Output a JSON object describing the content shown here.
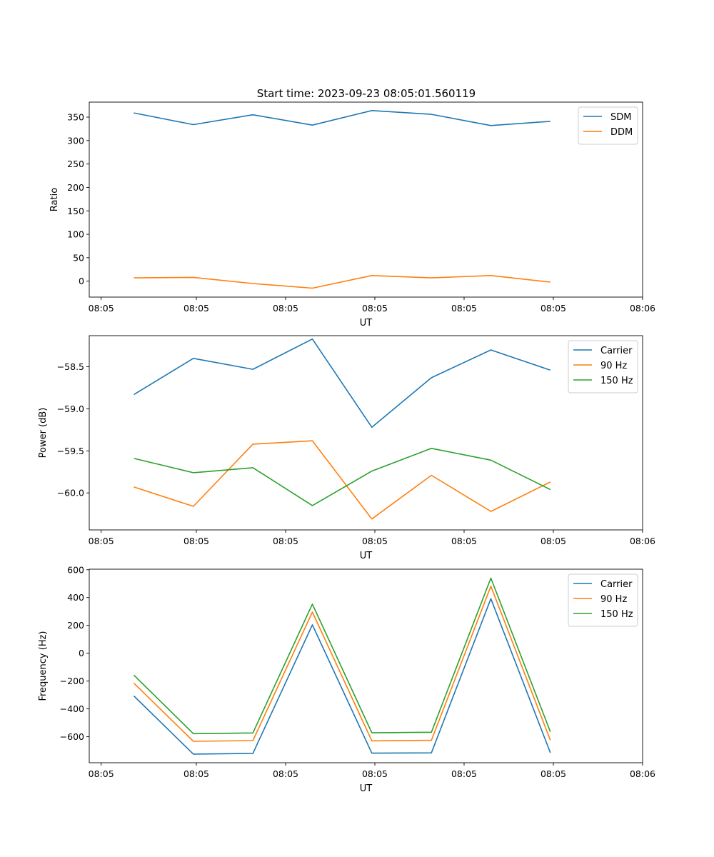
{
  "figure_title": "Start time: 2023-09-23 08:05:01.560119",
  "chart_data": [
    {
      "type": "line",
      "title": "Start time: 2023-09-23 08:05:01.560119",
      "xlabel": "UT",
      "ylabel": "Ratio",
      "xlim": [
        0,
        9.3
      ],
      "ylim": [
        -34,
        382
      ],
      "x": [
        0.75,
        1.75,
        2.75,
        3.75,
        4.75,
        5.75,
        6.75,
        7.75
      ],
      "x_ticks": [
        0.2,
        1.8,
        3.3,
        4.8,
        6.3,
        7.8,
        9.3
      ],
      "x_tick_labels": [
        "08:05",
        "08:05",
        "08:05",
        "08:05",
        "08:05",
        "08:05",
        "08:06"
      ],
      "y_ticks": [
        0,
        50,
        100,
        150,
        200,
        250,
        300,
        350
      ],
      "y_tick_labels": [
        "0",
        "50",
        "100",
        "150",
        "200",
        "250",
        "300",
        "350"
      ],
      "legend_position": "top-right",
      "series": [
        {
          "name": "SDM",
          "color": "#1f77b4",
          "values": [
            359,
            334,
            355,
            333,
            364,
            356,
            332,
            341
          ]
        },
        {
          "name": "DDM",
          "color": "#ff7f0e",
          "values": [
            7,
            8,
            -5,
            -15,
            12,
            7,
            12,
            -2
          ]
        }
      ]
    },
    {
      "type": "line",
      "title": "",
      "xlabel": "UT",
      "ylabel": "Power (dB)",
      "xlim": [
        0,
        9.3
      ],
      "ylim": [
        -60.44,
        -58.13
      ],
      "x": [
        0.75,
        1.75,
        2.75,
        3.75,
        4.75,
        5.75,
        6.75,
        7.75
      ],
      "x_ticks": [
        0.2,
        1.8,
        3.3,
        4.8,
        6.3,
        7.8,
        9.3
      ],
      "x_tick_labels": [
        "08:05",
        "08:05",
        "08:05",
        "08:05",
        "08:05",
        "08:05",
        "08:06"
      ],
      "y_ticks": [
        -60.0,
        -59.5,
        -59.0,
        -58.5
      ],
      "y_tick_labels": [
        "−60.0",
        "−59.5",
        "−59.0",
        "−58.5"
      ],
      "legend_position": "top-right",
      "series": [
        {
          "name": "Carrier",
          "color": "#1f77b4",
          "values": [
            -58.83,
            -58.4,
            -58.53,
            -58.17,
            -59.22,
            -58.63,
            -58.3,
            -58.54
          ]
        },
        {
          "name": "90 Hz",
          "color": "#ff7f0e",
          "values": [
            -59.93,
            -60.16,
            -59.42,
            -59.38,
            -60.31,
            -59.79,
            -60.22,
            -59.87
          ]
        },
        {
          "name": "150 Hz",
          "color": "#2ca02c",
          "values": [
            -59.59,
            -59.76,
            -59.7,
            -60.15,
            -59.74,
            -59.47,
            -59.61,
            -59.96
          ]
        }
      ]
    },
    {
      "type": "line",
      "title": "",
      "xlabel": "UT",
      "ylabel": "Frequency (Hz)",
      "xlim": [
        0,
        9.3
      ],
      "ylim": [
        -787,
        604
      ],
      "x": [
        0.75,
        1.75,
        2.75,
        3.75,
        4.75,
        5.75,
        6.75,
        7.75
      ],
      "x_ticks": [
        0.2,
        1.8,
        3.3,
        4.8,
        6.3,
        7.8,
        9.3
      ],
      "x_tick_labels": [
        "08:05",
        "08:05",
        "08:05",
        "08:05",
        "08:05",
        "08:05",
        "08:06"
      ],
      "y_ticks": [
        -600,
        -400,
        -200,
        0,
        200,
        400,
        600
      ],
      "y_tick_labels": [
        "−600",
        "−400",
        "−200",
        "0",
        "200",
        "400",
        "600"
      ],
      "legend_position": "top-right",
      "series": [
        {
          "name": "Carrier",
          "color": "#1f77b4",
          "values": [
            -307,
            -725,
            -720,
            204,
            -718,
            -716,
            392,
            -715
          ]
        },
        {
          "name": "90 Hz",
          "color": "#ff7f0e",
          "values": [
            -215,
            -633,
            -628,
            296,
            -630,
            -626,
            482,
            -625
          ]
        },
        {
          "name": "150 Hz",
          "color": "#2ca02c",
          "values": [
            -157,
            -578,
            -573,
            353,
            -572,
            -568,
            540,
            -565
          ]
        }
      ]
    }
  ]
}
